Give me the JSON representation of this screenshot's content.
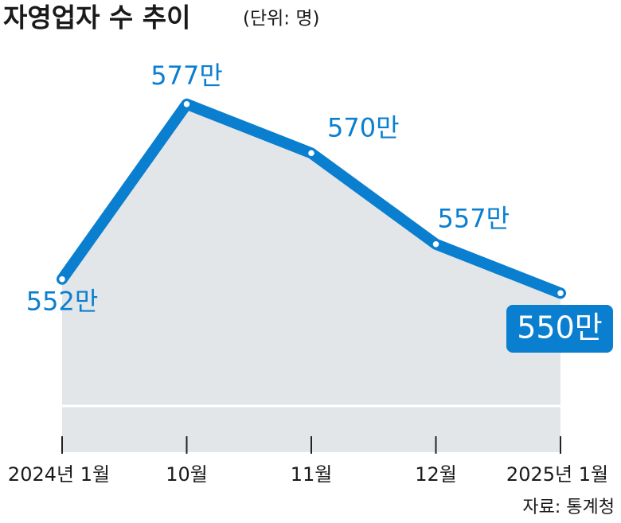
{
  "chart_data": {
    "type": "line",
    "title": "자영업자 수 추이",
    "subtitle": "(단위: 명)",
    "categories": [
      "2024년 1월",
      "10월",
      "11월",
      "12월",
      "2025년 1월"
    ],
    "values": [
      5520000,
      5770000,
      5700000,
      5570000,
      5500000
    ],
    "value_labels": [
      "552만",
      "577만",
      "570만",
      "557만",
      "550만"
    ],
    "color": "#0a7fd0",
    "area_color": "#e3e6e9",
    "ylim": [
      5273000,
      5805000
    ],
    "source": "자료: 통계청"
  }
}
